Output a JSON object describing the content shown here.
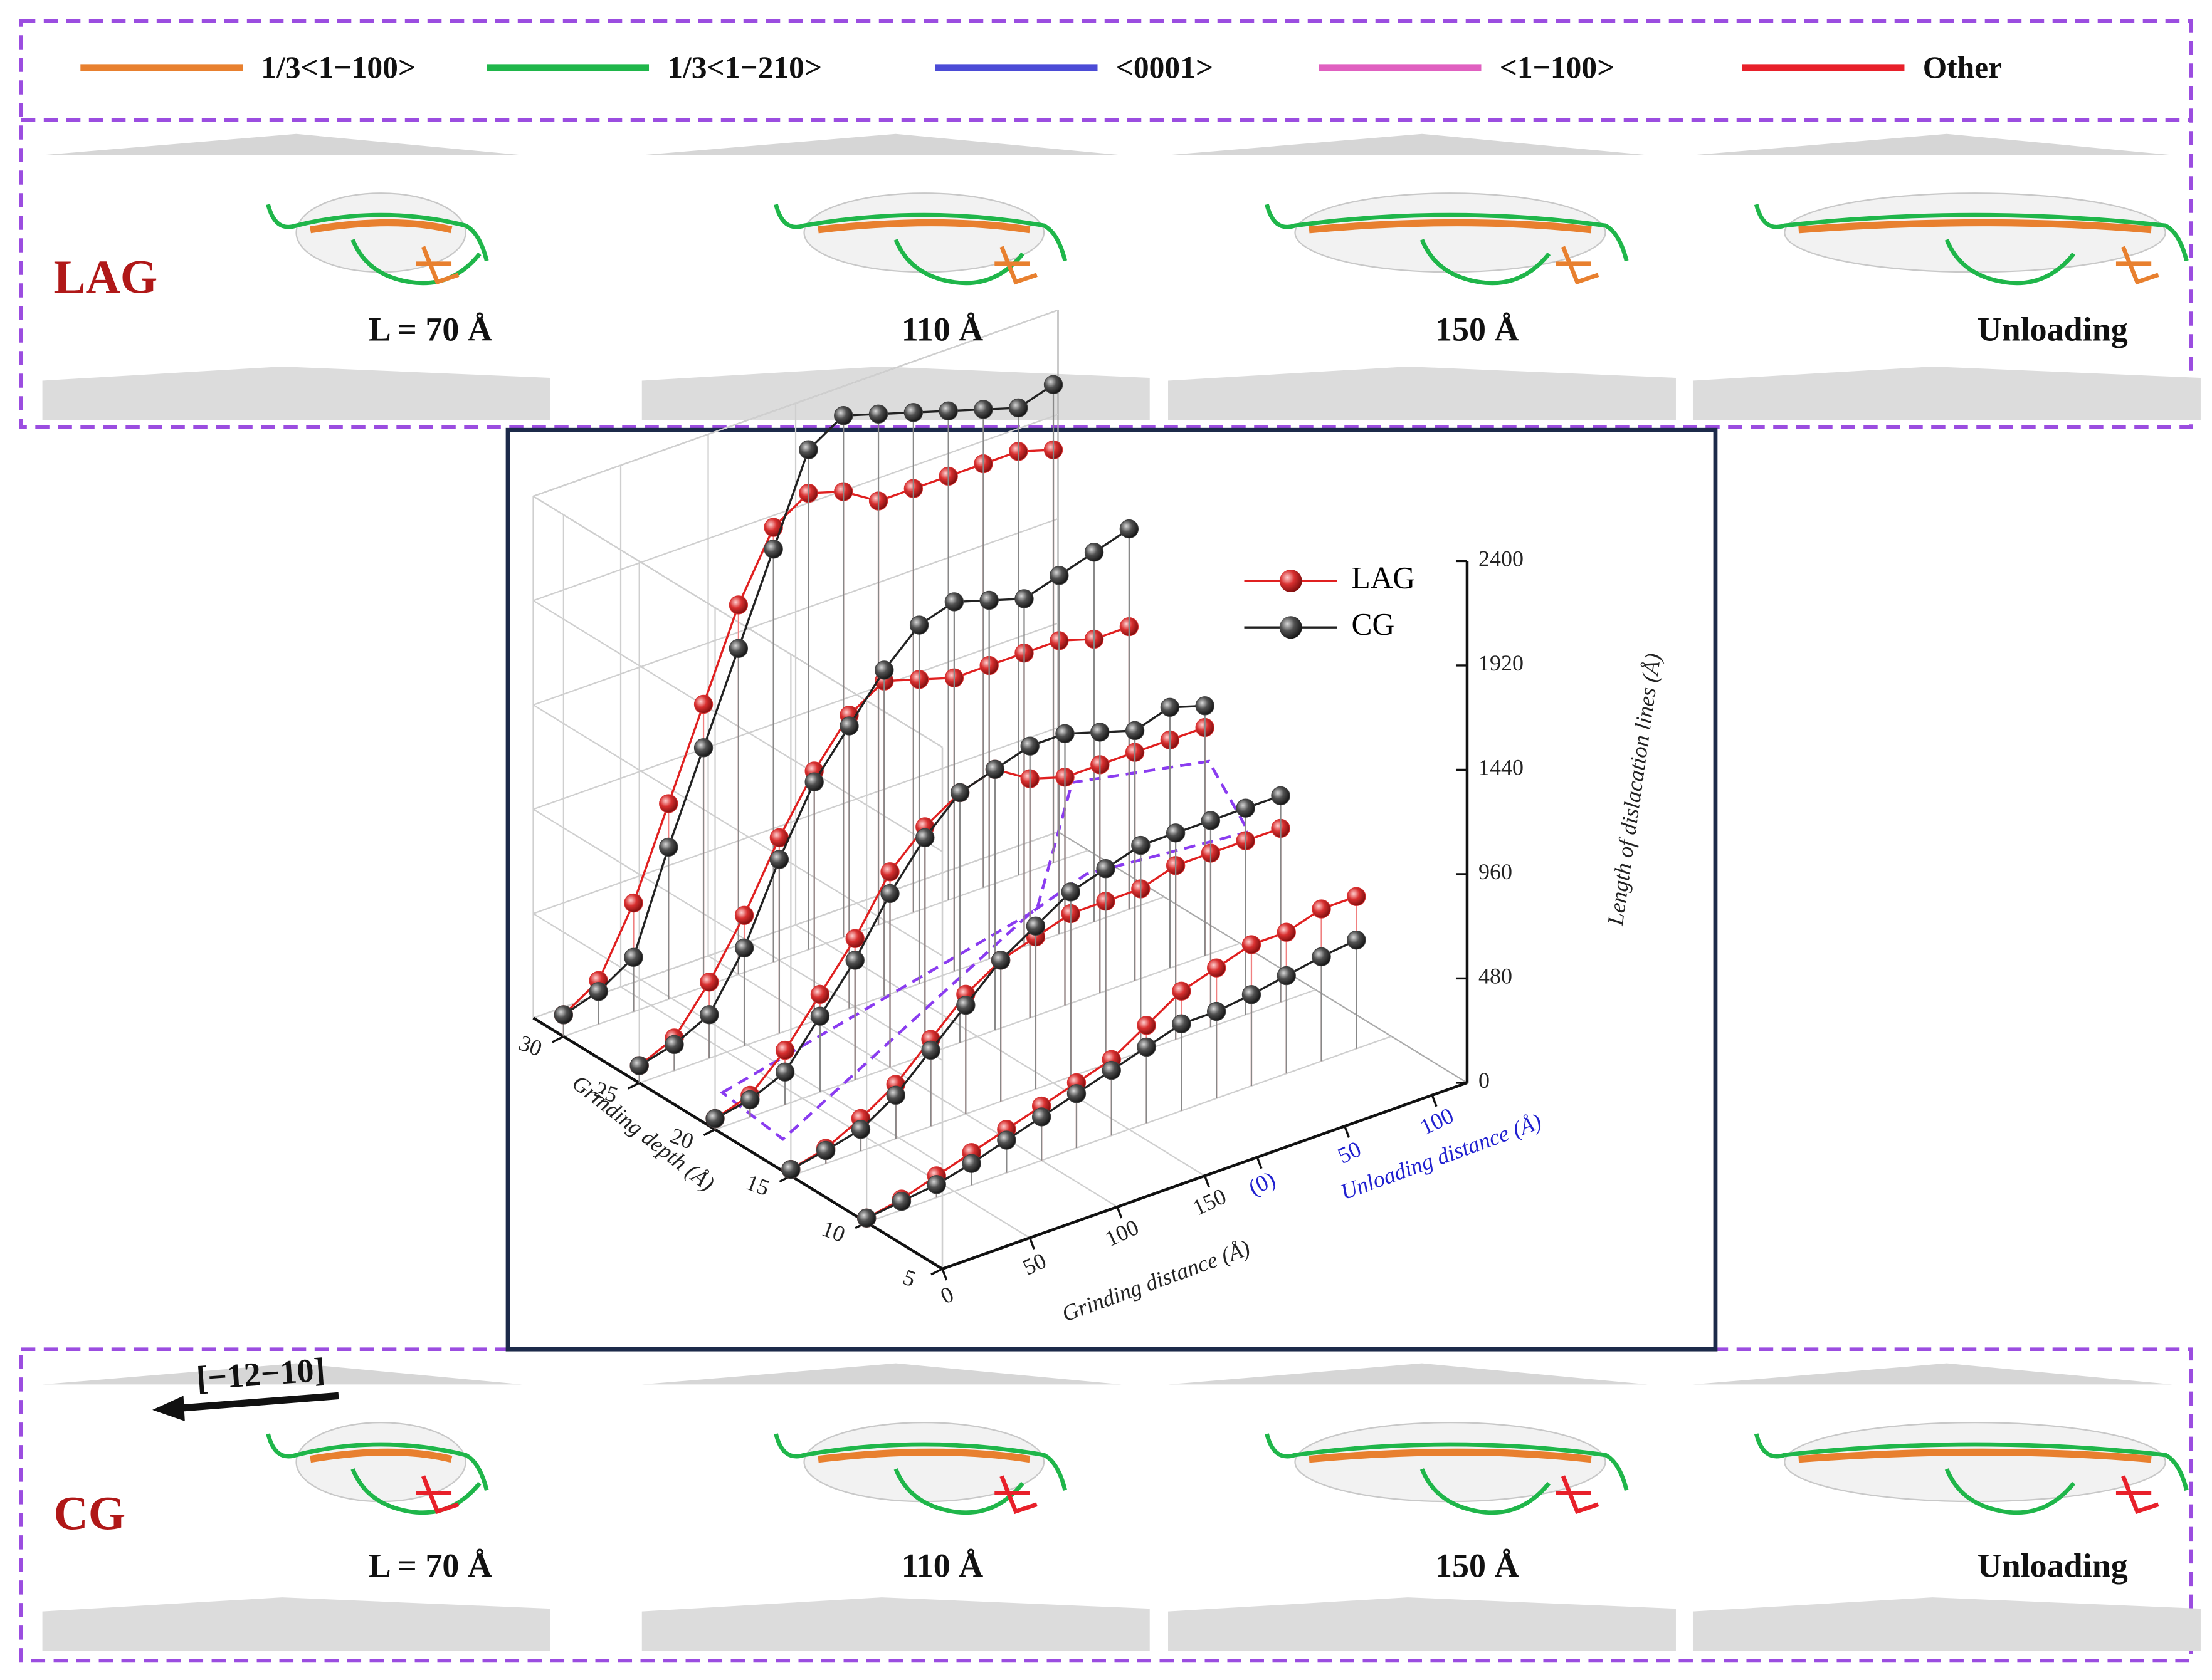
{
  "dislocation_legend": [
    {
      "label": "1/3<1−100>",
      "color": "#e8802f"
    },
    {
      "label": "1/3<1−210>",
      "color": "#1fb64a"
    },
    {
      "label": "<0001>",
      "color": "#4b4bd6"
    },
    {
      "label": "<1−100>",
      "color": "#e060c0"
    },
    {
      "label": "Other",
      "color": "#e8202a"
    }
  ],
  "snapshot_rows": [
    {
      "label": "LAG",
      "captions": [
        "L = 70 Å",
        "110 Å",
        "150 Å",
        "Unloading"
      ]
    },
    {
      "label": "CG",
      "direction": "[−12−10]",
      "captions": [
        "L = 70 Å",
        "110 Å",
        "150 Å",
        "Unloading"
      ]
    }
  ],
  "chart_data": {
    "type": "line3d",
    "x_label": "Grinding distance (Å)",
    "x2_label": "Unloading distance (Å)",
    "depth_label": "Grinding depth (Å)",
    "z_label": "Length of dislacation lines (Å)",
    "xlim": [
      0,
      300
    ],
    "xticks": [
      0,
      50,
      100,
      150
    ],
    "x2lim": [
      -180,
      120
    ],
    "x2ticks": [
      {
        "value": 0,
        "label": "(0)"
      },
      50,
      100
    ],
    "x2_color": "#2020d0",
    "depthlim": [
      5,
      32
    ],
    "depthticks": [
      5,
      10,
      15,
      20,
      25,
      30
    ],
    "zlim": [
      0,
      2400
    ],
    "zticks": [
      0,
      480,
      960,
      1440,
      1920,
      2400
    ],
    "grid": true,
    "x": [
      0,
      20,
      40,
      60,
      80,
      100,
      120,
      140,
      160,
      180,
      200,
      220,
      240,
      260,
      280
    ],
    "series": [
      {
        "name": "LAG",
        "color": "#e02020",
        "marker": "#d83030",
        "depths": [
          10,
          15,
          20,
          25,
          30
        ],
        "values": [
          [
            20,
            50,
            100,
            150,
            200,
            250,
            300,
            350,
            450,
            550,
            600,
            650,
            650,
            700,
            700
          ],
          [
            30,
            70,
            150,
            250,
            400,
            550,
            650,
            700,
            750,
            750,
            750,
            800,
            800,
            800,
            800
          ],
          [
            50,
            100,
            250,
            450,
            650,
            900,
            1050,
            1150,
            1200,
            1100,
            1050,
            1050,
            1050,
            1050,
            1050
          ],
          [
            80,
            150,
            350,
            600,
            900,
            1150,
            1350,
            1450,
            1400,
            1350,
            1350,
            1350,
            1350,
            1300,
            1300
          ],
          [
            100,
            200,
            500,
            900,
            1300,
            1700,
            2000,
            2100,
            2050,
            1950,
            1950,
            1950,
            1950,
            1950,
            1900
          ]
        ]
      },
      {
        "name": "CG",
        "color": "#222222",
        "marker": "#404040",
        "depths": [
          10,
          15,
          20,
          25,
          30
        ],
        "values": [
          [
            20,
            40,
            60,
            100,
            150,
            200,
            250,
            300,
            350,
            400,
            400,
            420,
            450,
            480,
            500
          ],
          [
            30,
            60,
            100,
            200,
            350,
            500,
            650,
            750,
            850,
            900,
            950,
            950,
            950,
            950,
            950
          ],
          [
            50,
            80,
            150,
            350,
            550,
            800,
            1000,
            1150,
            1200,
            1250,
            1250,
            1200,
            1150,
            1200,
            1150
          ],
          [
            80,
            120,
            200,
            450,
            800,
            1100,
            1300,
            1500,
            1650,
            1700,
            1650,
            1600,
            1650,
            1700,
            1750
          ],
          [
            100,
            150,
            250,
            700,
            1100,
            1500,
            1900,
            2300,
            2400,
            2350,
            2300,
            2250,
            2200,
            2150,
            2200
          ]
        ]
      }
    ]
  }
}
